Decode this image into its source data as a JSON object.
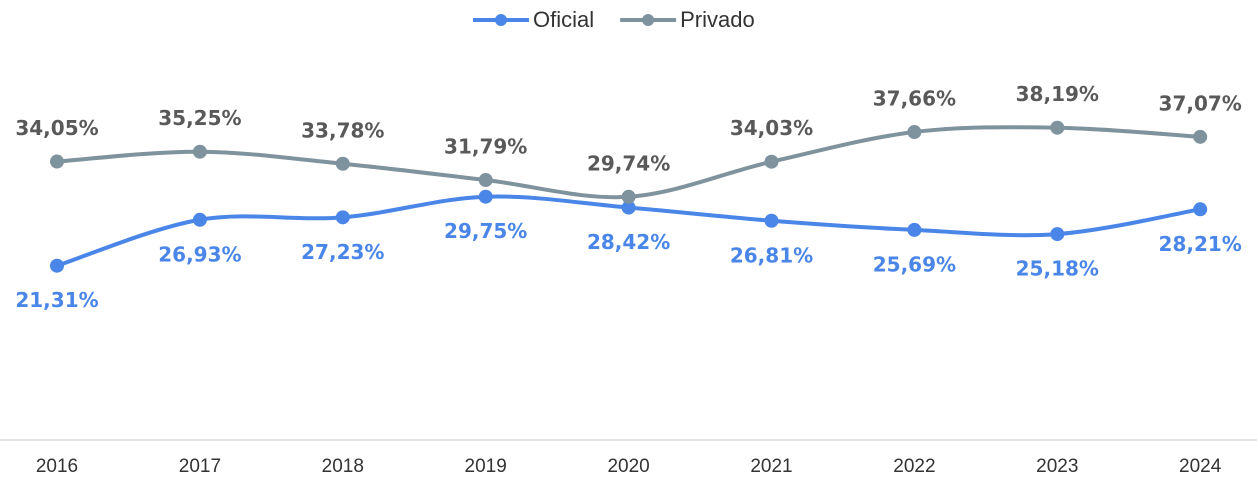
{
  "chart_data": {
    "type": "line",
    "categories": [
      "2016",
      "2017",
      "2018",
      "2019",
      "2020",
      "2021",
      "2022",
      "2023",
      "2024"
    ],
    "series": [
      {
        "name": "Oficial",
        "color": "#4a86e8",
        "values": [
          21.31,
          26.93,
          27.23,
          29.75,
          28.42,
          26.81,
          25.69,
          25.18,
          28.21
        ],
        "value_labels": [
          "21,31%",
          "26,93%",
          "27,23%",
          "29,75%",
          "28,42%",
          "26,81%",
          "25,69%",
          "25,18%",
          "28,21%"
        ]
      },
      {
        "name": "Privado",
        "color": "#7f939e",
        "values": [
          34.05,
          35.25,
          33.78,
          31.79,
          29.74,
          34.03,
          37.66,
          38.19,
          37.07
        ],
        "value_labels": [
          "34,05%",
          "35,25%",
          "33,78%",
          "31,79%",
          "29,74%",
          "34,03%",
          "37,66%",
          "38,19%",
          "37,07%"
        ]
      }
    ],
    "ylim": [
      0,
      45
    ],
    "legend": "top",
    "smooth": true
  }
}
